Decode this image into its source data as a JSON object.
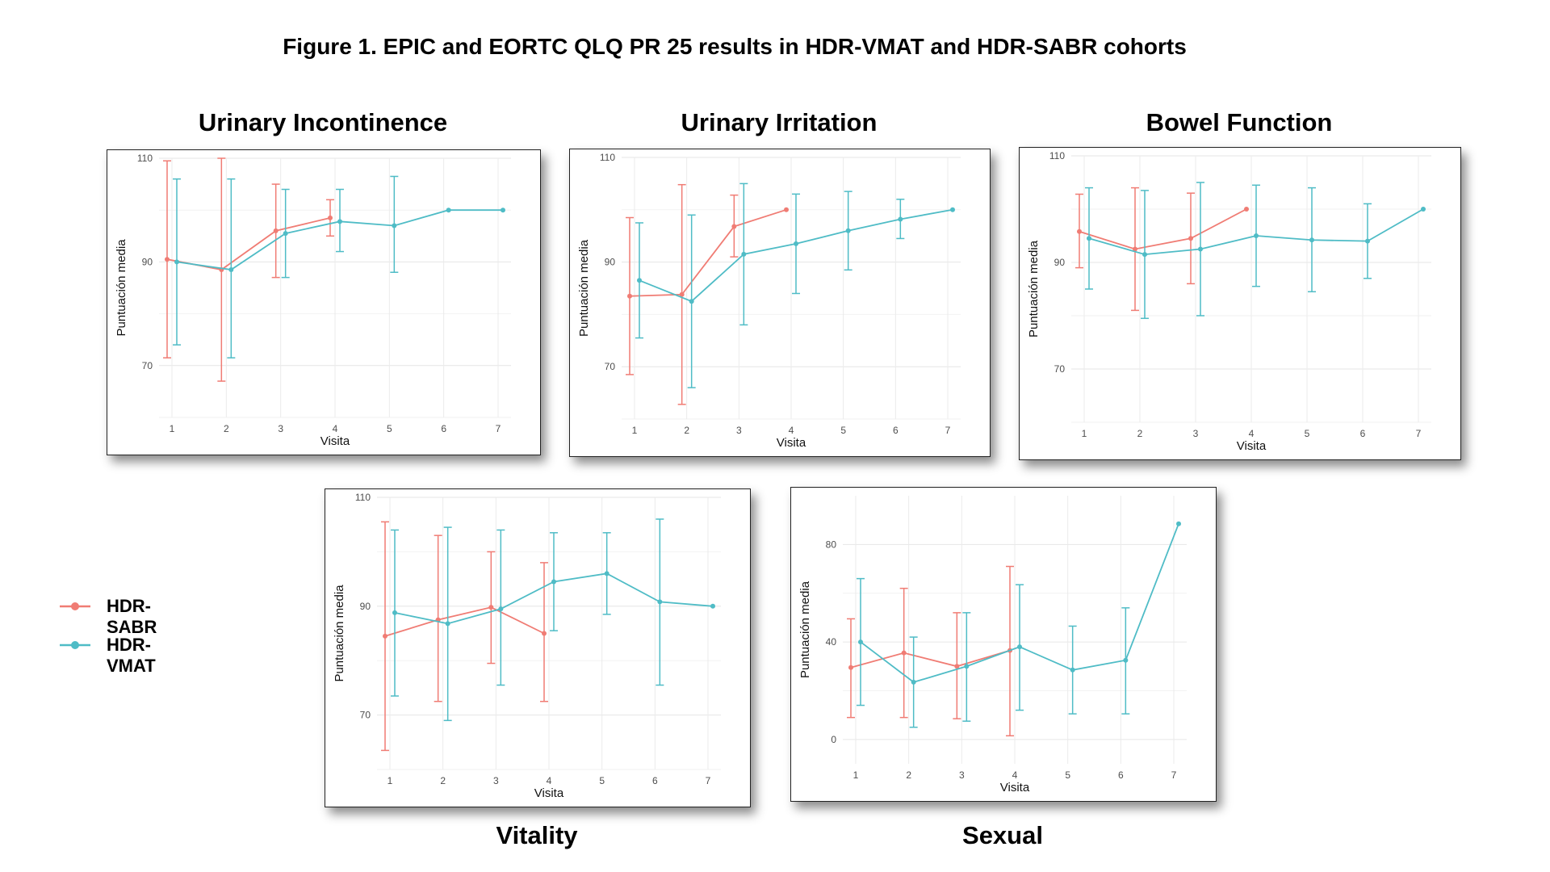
{
  "figure_title": "Figure 1. EPIC and EORTC QLQ PR 25 results in HDR-VMAT and HDR-SABR cohorts",
  "legend": [
    {
      "name": "HDR-SABR",
      "color": "#F07C74"
    },
    {
      "name": "HDR-VMAT",
      "color": "#4FBCC6"
    }
  ],
  "chart_data": [
    {
      "type": "line",
      "title": "Urinary Incontinence",
      "xlabel": "Visita",
      "ylabel": "Puntuación media",
      "x": [
        1,
        2,
        3,
        4,
        5,
        6,
        7
      ],
      "yticks": [
        70,
        90,
        110
      ],
      "ylim": [
        60,
        110
      ],
      "grid": true,
      "series": [
        {
          "name": "HDR-SABR",
          "color": "#F07C74",
          "points": [
            {
              "x": 1,
              "y": 90.5,
              "lo": 71.5,
              "hi": 109.5
            },
            {
              "x": 2,
              "y": 88.5,
              "lo": 67.0,
              "hi": 110.0
            },
            {
              "x": 3,
              "y": 96.0,
              "lo": 87.0,
              "hi": 105.0
            },
            {
              "x": 4,
              "y": 98.5,
              "lo": 95.0,
              "hi": 102.0
            }
          ]
        },
        {
          "name": "HDR-VMAT",
          "color": "#4FBCC6",
          "points": [
            {
              "x": 1,
              "y": 90.0,
              "lo": 74.0,
              "hi": 106.0
            },
            {
              "x": 2,
              "y": 88.5,
              "lo": 71.5,
              "hi": 106.0
            },
            {
              "x": 3,
              "y": 95.5,
              "lo": 87.0,
              "hi": 104.0
            },
            {
              "x": 4,
              "y": 97.8,
              "lo": 92.0,
              "hi": 104.0
            },
            {
              "x": 5,
              "y": 97.0,
              "lo": 88.0,
              "hi": 106.5
            },
            {
              "x": 6,
              "y": 100.0,
              "lo": 100.0,
              "hi": 100.0
            },
            {
              "x": 7,
              "y": 100.0,
              "lo": 100.0,
              "hi": 100.0
            }
          ]
        }
      ]
    },
    {
      "type": "line",
      "title": "Urinary Irritation",
      "xlabel": "Visita",
      "ylabel": "Puntuación media",
      "x": [
        1,
        2,
        3,
        4,
        5,
        6,
        7
      ],
      "yticks": [
        70,
        90,
        110
      ],
      "ylim": [
        60,
        110
      ],
      "grid": true,
      "series": [
        {
          "name": "HDR-SABR",
          "color": "#F07C74",
          "points": [
            {
              "x": 1,
              "y": 83.5,
              "lo": 68.5,
              "hi": 98.5
            },
            {
              "x": 2,
              "y": 83.8,
              "lo": 62.8,
              "hi": 104.8
            },
            {
              "x": 3,
              "y": 96.8,
              "lo": 91.0,
              "hi": 102.8
            },
            {
              "x": 4,
              "y": 100.0,
              "lo": 100.0,
              "hi": 100.0
            }
          ]
        },
        {
          "name": "HDR-VMAT",
          "color": "#4FBCC6",
          "points": [
            {
              "x": 1,
              "y": 86.5,
              "lo": 75.5,
              "hi": 97.5
            },
            {
              "x": 2,
              "y": 82.5,
              "lo": 66.0,
              "hi": 99.0
            },
            {
              "x": 3,
              "y": 91.5,
              "lo": 78.0,
              "hi": 105.0
            },
            {
              "x": 4,
              "y": 93.5,
              "lo": 84.0,
              "hi": 103.0
            },
            {
              "x": 5,
              "y": 96.0,
              "lo": 88.5,
              "hi": 103.5
            },
            {
              "x": 6,
              "y": 98.2,
              "lo": 94.5,
              "hi": 102.0
            },
            {
              "x": 7,
              "y": 100.0,
              "lo": 100.0,
              "hi": 100.0
            }
          ]
        }
      ]
    },
    {
      "type": "line",
      "title": "Bowel Function",
      "xlabel": "Visita",
      "ylabel": "Puntuación media",
      "x": [
        1,
        2,
        3,
        4,
        5,
        6,
        7
      ],
      "yticks": [
        70,
        90,
        110
      ],
      "ylim": [
        60,
        110
      ],
      "grid": true,
      "series": [
        {
          "name": "HDR-SABR",
          "color": "#F07C74",
          "points": [
            {
              "x": 1,
              "y": 95.8,
              "lo": 89.0,
              "hi": 102.8
            },
            {
              "x": 2,
              "y": 92.5,
              "lo": 81.0,
              "hi": 104.0
            },
            {
              "x": 3,
              "y": 94.5,
              "lo": 86.0,
              "hi": 103.0
            },
            {
              "x": 4,
              "y": 100.0,
              "lo": 100.0,
              "hi": 100.0
            }
          ]
        },
        {
          "name": "HDR-VMAT",
          "color": "#4FBCC6",
          "points": [
            {
              "x": 1,
              "y": 94.5,
              "lo": 85.0,
              "hi": 104.0
            },
            {
              "x": 2,
              "y": 91.5,
              "lo": 79.5,
              "hi": 103.5
            },
            {
              "x": 3,
              "y": 92.5,
              "lo": 80.0,
              "hi": 105.0
            },
            {
              "x": 4,
              "y": 95.0,
              "lo": 85.5,
              "hi": 104.5
            },
            {
              "x": 5,
              "y": 94.2,
              "lo": 84.5,
              "hi": 104.0
            },
            {
              "x": 6,
              "y": 94.0,
              "lo": 87.0,
              "hi": 101.0
            },
            {
              "x": 7,
              "y": 100.0,
              "lo": 100.0,
              "hi": 100.0
            }
          ]
        }
      ]
    },
    {
      "type": "line",
      "title": "Vitality",
      "xlabel": "Visita",
      "ylabel": "Puntuación media",
      "x": [
        1,
        2,
        3,
        4,
        5,
        6,
        7
      ],
      "yticks": [
        70,
        90,
        110
      ],
      "ylim": [
        60,
        110
      ],
      "grid": true,
      "series": [
        {
          "name": "HDR-SABR",
          "color": "#F07C74",
          "points": [
            {
              "x": 1,
              "y": 84.5,
              "lo": 63.5,
              "hi": 105.5
            },
            {
              "x": 2,
              "y": 87.5,
              "lo": 72.5,
              "hi": 103.0
            },
            {
              "x": 3,
              "y": 89.8,
              "lo": 79.5,
              "hi": 100.0
            },
            {
              "x": 4,
              "y": 85.0,
              "lo": 72.5,
              "hi": 98.0
            }
          ]
        },
        {
          "name": "HDR-VMAT",
          "color": "#4FBCC6",
          "points": [
            {
              "x": 1,
              "y": 88.8,
              "lo": 73.5,
              "hi": 104.0
            },
            {
              "x": 2,
              "y": 86.8,
              "lo": 69.0,
              "hi": 104.5
            },
            {
              "x": 3,
              "y": 89.5,
              "lo": 75.5,
              "hi": 104.0
            },
            {
              "x": 4,
              "y": 94.5,
              "lo": 85.5,
              "hi": 103.5
            },
            {
              "x": 5,
              "y": 96.0,
              "lo": 88.5,
              "hi": 103.5
            },
            {
              "x": 6,
              "y": 90.8,
              "lo": 75.5,
              "hi": 106.0
            },
            {
              "x": 7,
              "y": 90.0,
              "lo": 90.0,
              "hi": 90.0
            }
          ]
        }
      ]
    },
    {
      "type": "line",
      "title": "Sexual",
      "xlabel": "Visita",
      "ylabel": "Puntuación media",
      "x": [
        1,
        2,
        3,
        4,
        5,
        6,
        7
      ],
      "yticks": [
        0,
        40,
        80
      ],
      "ylim": [
        -10,
        100
      ],
      "grid": true,
      "series": [
        {
          "name": "HDR-SABR",
          "color": "#F07C74",
          "points": [
            {
              "x": 1,
              "y": 29.5,
              "lo": 9.0,
              "hi": 49.5
            },
            {
              "x": 2,
              "y": 35.5,
              "lo": 9.0,
              "hi": 62.0
            },
            {
              "x": 3,
              "y": 30.0,
              "lo": 8.5,
              "hi": 52.0
            },
            {
              "x": 4,
              "y": 36.5,
              "lo": 1.5,
              "hi": 71.0
            }
          ]
        },
        {
          "name": "HDR-VMAT",
          "color": "#4FBCC6",
          "points": [
            {
              "x": 1,
              "y": 40.0,
              "lo": 14.0,
              "hi": 66.0
            },
            {
              "x": 2,
              "y": 23.5,
              "lo": 5.0,
              "hi": 42.0
            },
            {
              "x": 3,
              "y": 30.0,
              "lo": 7.5,
              "hi": 52.0
            },
            {
              "x": 4,
              "y": 38.0,
              "lo": 12.0,
              "hi": 63.5
            },
            {
              "x": 5,
              "y": 28.5,
              "lo": 10.5,
              "hi": 46.5
            },
            {
              "x": 6,
              "y": 32.5,
              "lo": 10.5,
              "hi": 54.0
            },
            {
              "x": 7,
              "y": 88.5,
              "lo": 88.5,
              "hi": 88.5
            }
          ]
        }
      ]
    }
  ]
}
